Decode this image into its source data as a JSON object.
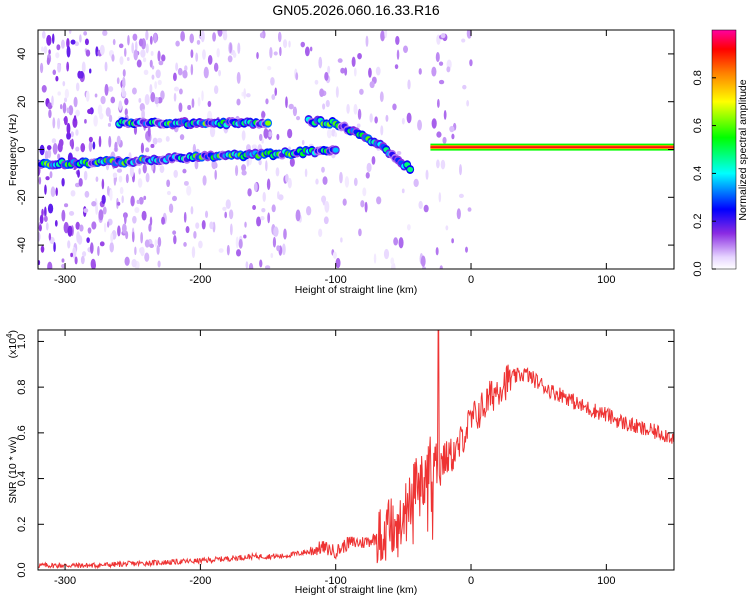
{
  "page": {
    "title": "GN05.2026.060.16.33.R16"
  },
  "colorbar": {
    "label": "Normalized spectral amplitude",
    "ticks": [
      "0.0",
      "0.2",
      "0.4",
      "0.6",
      "0.8"
    ],
    "range": [
      0,
      1
    ]
  },
  "chart_data": [
    {
      "type": "heatmap",
      "title": "GN05.2026.060.16.33.R16",
      "xlabel": "Height of straight line (km)",
      "ylabel": "Frequency (Hz)",
      "xlim": [
        -320,
        150
      ],
      "ylim": [
        -50,
        50
      ],
      "xticks": [
        "-300",
        "-200",
        "-100",
        "0",
        "100"
      ],
      "yticks": [
        "-40",
        "-20",
        "0",
        "20",
        "40"
      ],
      "features": [
        {
          "name": "lower-band",
          "x": [
            -320,
            -250,
            -200,
            -150,
            -120,
            -100
          ],
          "freq": [
            -6,
            -5,
            -3,
            -2,
            -1,
            0
          ]
        },
        {
          "name": "upper-band",
          "x": [
            -260,
            -150
          ],
          "freq": [
            11,
            11
          ]
        },
        {
          "name": "descending-branch",
          "x": [
            -120,
            -100,
            -85,
            -70,
            -55,
            -45
          ],
          "freq": [
            12,
            11,
            7,
            3,
            -4,
            -8
          ]
        },
        {
          "name": "converged-line",
          "x": [
            -30,
            0,
            150
          ],
          "freq": [
            1,
            1,
            1
          ]
        }
      ]
    },
    {
      "type": "line",
      "xlabel": "Height of straight line (km)",
      "ylabel": "SNR (10 * v/v)",
      "yexponent": "(x10",
      "yexponent_power": "4",
      "xlim": [
        -320,
        150
      ],
      "ylim": [
        0,
        1.05
      ],
      "xticks": [
        "-300",
        "-200",
        "-100",
        "0",
        "100"
      ],
      "yticks": [
        "0.0",
        "0.2",
        "0.4",
        "0.6",
        "0.8",
        "1.0"
      ],
      "series": [
        {
          "name": "SNR",
          "color": "#ee3333",
          "x": [
            -320,
            -280,
            -240,
            -200,
            -180,
            -160,
            -140,
            -120,
            -110,
            -100,
            -90,
            -80,
            -70,
            -60,
            -55,
            -50,
            -45,
            -40,
            -35,
            -30,
            -25,
            -20,
            -15,
            -10,
            -5,
            0,
            10,
            20,
            30,
            40,
            50,
            60,
            70,
            80,
            90,
            100,
            110,
            120,
            130,
            140,
            150
          ],
          "values": [
            0.02,
            0.02,
            0.03,
            0.04,
            0.05,
            0.06,
            0.06,
            0.08,
            0.1,
            0.08,
            0.12,
            0.12,
            0.14,
            0.2,
            0.22,
            0.28,
            0.3,
            0.4,
            0.38,
            0.5,
            0.45,
            0.48,
            0.5,
            0.52,
            0.6,
            0.65,
            0.72,
            0.8,
            0.84,
            0.86,
            0.82,
            0.78,
            0.76,
            0.72,
            0.7,
            0.68,
            0.65,
            0.63,
            0.61,
            0.6,
            0.58
          ]
        }
      ]
    }
  ]
}
